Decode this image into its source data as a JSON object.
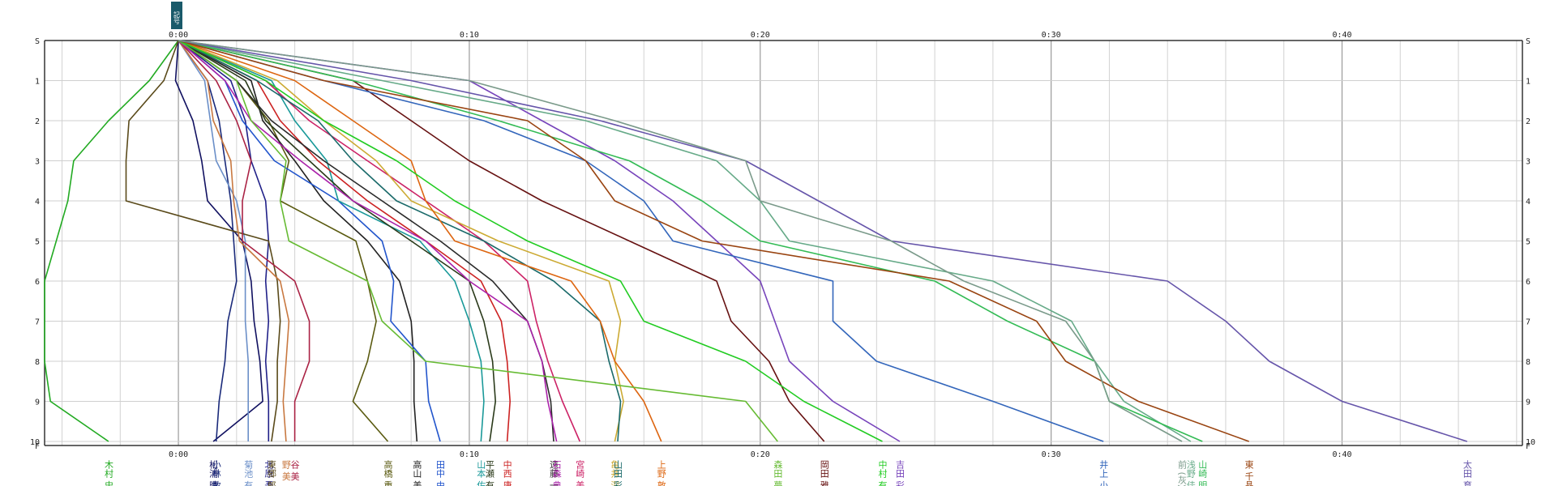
{
  "chart_data": {
    "type": "line",
    "title": "",
    "xlabel": "",
    "ylabel": "",
    "x_unit": "minutes",
    "xlim": [
      -4.6,
      46.2
    ],
    "x_ticks": [
      {
        "value": 0,
        "label": "0:00"
      },
      {
        "value": 10,
        "label": "0:10"
      },
      {
        "value": 20,
        "label": "0:20"
      },
      {
        "value": 30,
        "label": "0:30"
      },
      {
        "value": 40,
        "label": "0:40"
      }
    ],
    "y_ticks": [
      {
        "value": 0,
        "label": "S"
      },
      {
        "value": 1,
        "label": "1"
      },
      {
        "value": 2,
        "label": "2"
      },
      {
        "value": 3,
        "label": "3"
      },
      {
        "value": 4,
        "label": "4"
      },
      {
        "value": 5,
        "label": "5"
      },
      {
        "value": 6,
        "label": "6"
      },
      {
        "value": 7,
        "label": "7"
      },
      {
        "value": 8,
        "label": "8"
      },
      {
        "value": 9,
        "label": "9"
      },
      {
        "value": 10,
        "label": "10"
      },
      {
        "value": 10.1,
        "label": "F"
      }
    ],
    "grid": true,
    "legend": "bottom",
    "top_label_text": "記号",
    "series": [
      {
        "name": "木村 史",
        "color": "#22aa22",
        "values": [
          0,
          -1.0,
          -2.4,
          -3.6,
          -3.8,
          -4.2,
          -4.6,
          -4.6,
          -4.6,
          -4.4,
          -2.4
        ]
      },
      {
        "name": "松浦 晴",
        "color": "#101060",
        "values": [
          0,
          -0.1,
          0.5,
          0.8,
          1.0,
          2.2,
          2.5,
          2.6,
          2.8,
          2.9,
          1.2
        ]
      },
      {
        "name": "小林 敏",
        "color": "#1a2a7a",
        "values": [
          0,
          1.0,
          1.4,
          1.6,
          1.8,
          1.9,
          2.0,
          1.7,
          1.6,
          1.4,
          1.3
        ]
      },
      {
        "name": "菊池 有",
        "color": "#6b8fc8",
        "values": [
          0,
          0.9,
          1.1,
          1.3,
          2.0,
          2.3,
          2.3,
          2.3,
          2.4,
          2.4,
          2.4
        ]
      },
      {
        "name": "北原 吾",
        "color": "#202088",
        "values": [
          0,
          1.8,
          2.3,
          2.5,
          3.0,
          3.1,
          3.0,
          3.1,
          3.0,
          3.1,
          3.1
        ]
      },
      {
        "name": "東郷 郎",
        "color": "#5a4a1a",
        "values": [
          0,
          -0.5,
          -1.7,
          -1.8,
          -1.8,
          3.1,
          3.4,
          3.5,
          3.4,
          3.4,
          3.2
        ]
      },
      {
        "name": "野 美",
        "color": "#c87840",
        "values": [
          0,
          1.0,
          1.2,
          1.8,
          1.9,
          2.1,
          3.5,
          3.8,
          3.7,
          3.6,
          3.7
        ]
      },
      {
        "name": "谷 美",
        "color": "#aa2244",
        "values": [
          0,
          1.3,
          2.0,
          2.5,
          2.2,
          2.2,
          4.0,
          4.5,
          4.5,
          4.0,
          4.0
        ]
      },
      {
        "name": "高橋 重",
        "color": "#5a5a10",
        "values": [
          0,
          2.0,
          3.1,
          3.8,
          3.5,
          6.1,
          6.5,
          6.8,
          6.5,
          6.0,
          7.2
        ]
      },
      {
        "name": "高山 美",
        "color": "#222222",
        "values": [
          0,
          2.5,
          2.9,
          4.0,
          5.0,
          6.5,
          7.6,
          8.0,
          8.1,
          8.1,
          8.2
        ]
      },
      {
        "name": "田中 由",
        "color": "#2255cc",
        "values": [
          0,
          1.6,
          2.2,
          3.3,
          5.5,
          7.0,
          7.4,
          7.3,
          8.5,
          8.6,
          9.0
        ]
      },
      {
        "name": "山本 佐",
        "color": "#1a9999",
        "values": [
          0,
          3.2,
          4.0,
          5.1,
          5.5,
          8.3,
          9.5,
          10.0,
          10.4,
          10.5,
          10.4
        ]
      },
      {
        "name": "平瀬 有",
        "color": "#2a3a1a",
        "values": [
          0,
          2.3,
          3.0,
          4.5,
          6.0,
          8.0,
          10.0,
          10.5,
          10.8,
          10.9,
          10.7
        ]
      },
      {
        "name": "中西 唐",
        "color": "#cc2222",
        "values": [
          0,
          2.7,
          3.5,
          4.8,
          6.5,
          8.5,
          10.4,
          11.1,
          11.3,
          11.4,
          11.3
        ]
      },
      {
        "name": "遠藤 一",
        "color": "#2a2a2a",
        "values": [
          0,
          2.0,
          3.2,
          5.0,
          7.0,
          9.0,
          10.8,
          12.0,
          12.5,
          12.8,
          12.9
        ]
      },
      {
        "name": "石森 典",
        "color": "#aa22aa",
        "values": [
          0,
          1.6,
          2.5,
          4.2,
          6.0,
          8.5,
          10.0,
          12.0,
          12.5,
          12.7,
          13.0
        ]
      },
      {
        "name": "宮崎 美",
        "color": "#cc2266",
        "values": [
          0,
          3.0,
          4.5,
          6.5,
          8.5,
          10.5,
          12.0,
          12.3,
          12.7,
          13.2,
          13.8
        ]
      },
      {
        "name": "亀井 深",
        "color": "#ccaa33",
        "values": [
          0,
          3.4,
          5.0,
          6.8,
          8.0,
          11.0,
          14.8,
          15.2,
          15.0,
          15.3,
          15.0
        ]
      },
      {
        "name": "山田 彩",
        "color": "#1a6a6a",
        "values": [
          0,
          2.7,
          4.8,
          6.0,
          7.5,
          10.5,
          12.9,
          14.5,
          14.8,
          15.2,
          15.1
        ]
      },
      {
        "name": "上野 敦",
        "color": "#dd6611",
        "values": [
          0,
          4.0,
          6.0,
          8.0,
          8.5,
          9.5,
          13.5,
          14.5,
          15.0,
          16.0,
          16.6
        ]
      },
      {
        "name": "森田 夢",
        "color": "#66bb33",
        "values": [
          0,
          2.0,
          2.5,
          3.7,
          3.5,
          3.8,
          6.5,
          7.0,
          8.5,
          19.5,
          20.6
        ]
      },
      {
        "name": "岡田 雅",
        "color": "#661111",
        "values": [
          0,
          6.0,
          8.0,
          10.0,
          12.5,
          15.5,
          18.5,
          19.0,
          20.3,
          21.0,
          22.2
        ]
      },
      {
        "name": "中村 有",
        "color": "#22cc22",
        "values": [
          0,
          3.0,
          5.0,
          7.5,
          9.5,
          12.0,
          15.2,
          16.0,
          19.5,
          21.5,
          24.2
        ]
      },
      {
        "name": "吉田 彩",
        "color": "#7744bb",
        "values": [
          0,
          10.0,
          12.5,
          15.0,
          17.0,
          18.5,
          20.0,
          20.5,
          21.0,
          22.5,
          24.8
        ]
      },
      {
        "name": "井上 小",
        "color": "#3366bb",
        "values": [
          0,
          5.0,
          10.5,
          14.0,
          16.0,
          17.0,
          22.5,
          22.5,
          24.0,
          28.0,
          31.8
        ]
      },
      {
        "name": "浅野 佳",
        "color": "#66aa88",
        "values": [
          0,
          7.0,
          14.0,
          18.5,
          20.0,
          21.0,
          28.0,
          30.7,
          31.5,
          32.5,
          34.8
        ]
      },
      {
        "name": "山崎 明",
        "color": "#33bb55",
        "values": [
          0,
          6.0,
          11.0,
          15.5,
          18.0,
          20.0,
          26.0,
          28.5,
          31.5,
          32.0,
          35.2
        ]
      },
      {
        "name": "東 千晶",
        "color": "#994411",
        "values": [
          0,
          5.0,
          12.0,
          14.0,
          15.0,
          18.0,
          26.5,
          29.5,
          30.5,
          33.0,
          36.8
        ]
      },
      {
        "name": "太田 育",
        "color": "#6655aa",
        "values": [
          0,
          8.0,
          14.5,
          19.5,
          22.0,
          24.5,
          34.0,
          36.0,
          37.5,
          40.0,
          44.3
        ]
      },
      {
        "name": "前 (灰)",
        "color": "#7a9a8a",
        "values": [
          0,
          10.0,
          15.0,
          19.5,
          20.0,
          24.5,
          27.0,
          30.5,
          31.5,
          32.0,
          34.5
        ]
      }
    ]
  }
}
